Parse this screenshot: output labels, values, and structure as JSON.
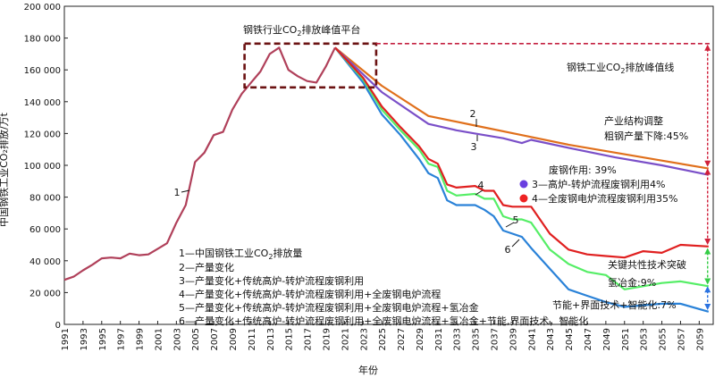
{
  "chart_data": {
    "type": "line",
    "title": "",
    "xlabel": "年份",
    "ylabel": "中国钢铁工业CO₂排放/万t",
    "xlim": [
      1991,
      2060
    ],
    "ylim": [
      0,
      200000
    ],
    "yticks": [
      "0",
      "20 000",
      "40 000",
      "60 000",
      "80 000",
      "100 000",
      "120 000",
      "140 000",
      "160 000",
      "180 000",
      "200 000"
    ],
    "ytick_values": [
      0,
      20000,
      40000,
      60000,
      80000,
      100000,
      120000,
      140000,
      160000,
      180000,
      200000
    ],
    "xticks": [
      "1991",
      "1993",
      "1995",
      "1997",
      "1999",
      "2001",
      "2003",
      "2005",
      "2007",
      "2009",
      "2011",
      "2013",
      "2015",
      "2017",
      "2019",
      "2021",
      "2023",
      "2025",
      "2027",
      "2029",
      "2031",
      "2033",
      "2035",
      "2037",
      "2039",
      "2041",
      "2043",
      "2045",
      "2047",
      "2049",
      "2051",
      "2053",
      "2055",
      "2057",
      "2059"
    ],
    "historical": {
      "name": "1—中国钢铁工业CO₂排放量",
      "label": "1",
      "color": "#b0405a",
      "x": [
        1991,
        1992,
        1993,
        1994,
        1995,
        1996,
        1997,
        1998,
        1999,
        2000,
        2001,
        2002,
        2003,
        2004,
        2005,
        2006,
        2007,
        2008,
        2009,
        2010,
        2011,
        2012,
        2013,
        2014,
        2015,
        2016,
        2017,
        2018,
        2019,
        2020
      ],
      "y": [
        28000,
        30000,
        34000,
        37500,
        41500,
        42000,
        41500,
        44500,
        43500,
        44000,
        47500,
        51000,
        64000,
        75000,
        102000,
        108000,
        119000,
        121000,
        135000,
        145000,
        152000,
        159000,
        170000,
        174000,
        160000,
        156000,
        153000,
        152000,
        162000,
        174000
      ]
    },
    "series": [
      {
        "name": "2—产量变化",
        "label": "2",
        "color": "#e0701c",
        "x": [
          2020,
          2025,
          2030,
          2035,
          2040,
          2045,
          2050,
          2055,
          2060
        ],
        "y": [
          174000,
          150000,
          131000,
          125000,
          119000,
          113000,
          108000,
          103000,
          98000
        ]
      },
      {
        "name": "3—产量变化+传统高炉-转炉流程废钢利用",
        "label": "3",
        "color": "#7a4fc8",
        "x": [
          2020,
          2025,
          2030,
          2033,
          2035,
          2038,
          2040,
          2041,
          2045,
          2050,
          2055,
          2060
        ],
        "y": [
          174000,
          146000,
          126000,
          122000,
          120000,
          117000,
          114000,
          116000,
          111000,
          105000,
          100000,
          94000
        ]
      },
      {
        "name": "4—产量变化+传统高炉-转炉流程废钢利用+全废钢电炉流程",
        "label": "4",
        "color": "#e02020",
        "x": [
          2020,
          2023,
          2025,
          2027,
          2029,
          2030,
          2031,
          2032,
          2033,
          2035,
          2036,
          2037,
          2038,
          2039,
          2040,
          2041,
          2043,
          2045,
          2047,
          2049,
          2051,
          2053,
          2055,
          2057,
          2060
        ],
        "y": [
          174000,
          155000,
          137000,
          124000,
          112000,
          104000,
          101000,
          88000,
          86000,
          87000,
          84000,
          84000,
          75000,
          74000,
          74000,
          74000,
          57000,
          47000,
          44000,
          43000,
          42000,
          46000,
          45000,
          50000,
          49000
        ]
      },
      {
        "name": "5—产量变化+传统高炉-转炉流程废钢利用+全废钢电炉流程+氢冶金",
        "label": "5",
        "color": "#55ee66",
        "x": [
          2020,
          2023,
          2025,
          2027,
          2029,
          2030,
          2031,
          2032,
          2033,
          2035,
          2036,
          2037,
          2038,
          2039,
          2040,
          2041,
          2043,
          2045,
          2047,
          2049,
          2051,
          2053,
          2055,
          2057,
          2060
        ],
        "y": [
          174000,
          154000,
          135000,
          122000,
          110000,
          101000,
          99000,
          84000,
          81000,
          82000,
          79000,
          79000,
          68000,
          66000,
          66000,
          64000,
          47000,
          38000,
          33000,
          31000,
          22000,
          24000,
          26000,
          27000,
          24000
        ]
      },
      {
        "name": "6—产量变化+传统高炉-转炉流程废钢利用+全废钢电炉流程+氢冶金+节能,界面技术，智能化",
        "label": "6",
        "color": "#2a82d8",
        "x": [
          2020,
          2023,
          2025,
          2027,
          2029,
          2030,
          2031,
          2032,
          2033,
          2035,
          2036,
          2037,
          2038,
          2039,
          2040,
          2041,
          2043,
          2045,
          2047,
          2049,
          2051,
          2053,
          2055,
          2057,
          2060
        ],
        "y": [
          174000,
          152000,
          132000,
          119000,
          104000,
          95000,
          92000,
          78000,
          75000,
          75000,
          72000,
          68000,
          59000,
          57000,
          55000,
          48000,
          35000,
          22000,
          18000,
          14000,
          11000,
          12000,
          13000,
          13000,
          8000
        ]
      }
    ],
    "annotations": {
      "platform_title": "钢铁行业CO",
      "platform_title_sub": "2",
      "platform_title_tail": "排放峰值平台",
      "peak_line_label": "钢铁工业CO",
      "peak_line_sub": "2",
      "peak_line_tail": "排放峰值线",
      "structure_1": "产业结构调整",
      "structure_2": "粗钢产量下降:45%",
      "scrap": "废钢作用: 39%",
      "key_tech": "关键共性技术突破",
      "hydrogen": "氢冶金:9%",
      "energy": "节能+界面技术+智能化:7%"
    },
    "markers": [
      {
        "label": "3—高炉-转炉流程废钢利用4%",
        "color": "#6a3fe0"
      },
      {
        "label": "4—全废钢电炉流程废钢利用35%",
        "color": "#ee2222"
      }
    ],
    "legend": [
      {
        "pre": "1—中国钢铁工业CO",
        "sub": "2",
        "post": "排放量"
      },
      {
        "pre": "2—产量变化",
        "sub": "",
        "post": ""
      },
      {
        "pre": "3—产量变化+传统高炉-转炉流程废钢利用",
        "sub": "",
        "post": ""
      },
      {
        "pre": "4—产量变化+传统高炉-转炉流程废钢利用+全废钢电炉流程",
        "sub": "",
        "post": ""
      },
      {
        "pre": "5—产量变化+传统高炉-转炉流程废钢利用+全废钢电炉流程+氢冶金",
        "sub": "",
        "post": ""
      },
      {
        "pre": "6—产量变化+传统高炉-转炉流程废钢利用+全废钢电炉流程+氢冶金+节能,界面技术，智能化",
        "sub": "",
        "post": ""
      }
    ],
    "colors": {
      "platform": "#6b1212",
      "peak": "#c42040",
      "arrow_red": "#d0203a",
      "arrow_green": "#33cc44",
      "arrow_blue": "#2a72e0"
    }
  }
}
